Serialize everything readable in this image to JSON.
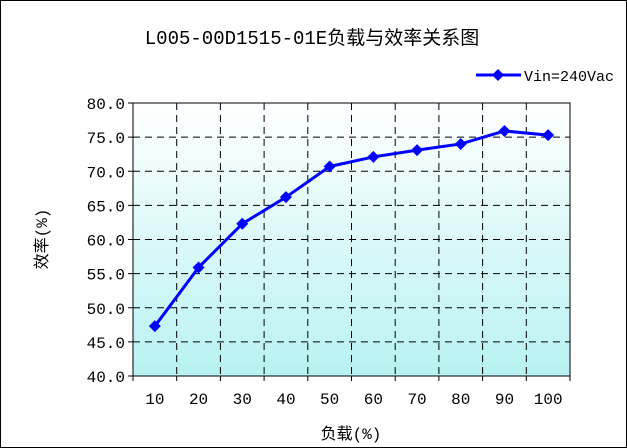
{
  "chart_data": {
    "type": "line",
    "title": "L005-00D1515-01E负载与效率关系图",
    "xlabel": "负载(%)",
    "ylabel": "效率(%)",
    "categories": [
      "10",
      "20",
      "30",
      "40",
      "50",
      "60",
      "70",
      "80",
      "90",
      "100"
    ],
    "series": [
      {
        "name": "Vin=240Vac",
        "color": "#0000ff",
        "marker": "diamond",
        "values": [
          47.3,
          55.9,
          62.3,
          66.2,
          70.7,
          72.1,
          73.1,
          74.0,
          75.9,
          75.3
        ]
      }
    ],
    "ylim": [
      40,
      80
    ],
    "yticks": [
      "40.0",
      "45.0",
      "50.0",
      "55.0",
      "60.0",
      "65.0",
      "70.0",
      "75.0",
      "80.0"
    ],
    "grid": true,
    "legend_position": "top-right",
    "plot_background": "gradient white to light cyan"
  }
}
